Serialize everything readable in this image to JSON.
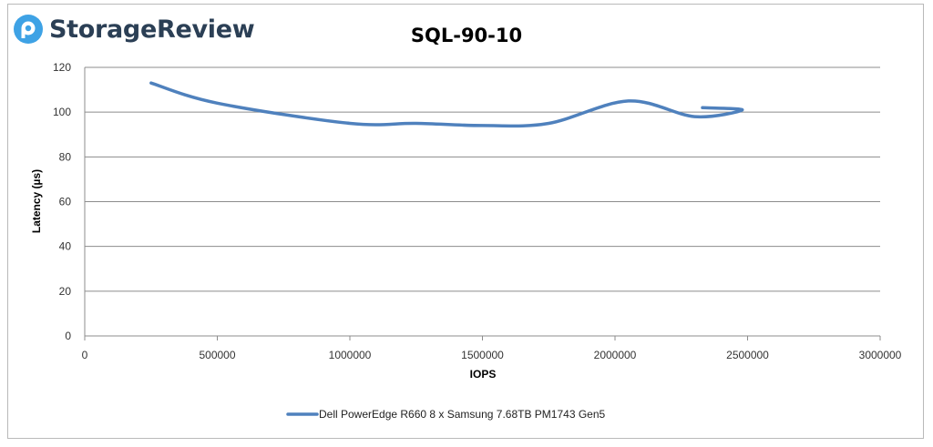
{
  "brand": {
    "name": "StorageReview",
    "logo_color": "#3ea2e5",
    "text_color": "#2b3f55"
  },
  "chart_data": {
    "type": "line",
    "title": "SQL-90-10",
    "xlabel": "IOPS",
    "ylabel": "Latency (µs)",
    "xlim": [
      0,
      3000000
    ],
    "ylim": [
      0,
      120
    ],
    "x_ticks": [
      0,
      500000,
      1000000,
      1500000,
      2000000,
      2500000,
      3000000
    ],
    "y_ticks": [
      0,
      20,
      40,
      60,
      80,
      100,
      120
    ],
    "grid": "horizontal",
    "legend_position": "bottom",
    "series": [
      {
        "name": "Dell PowerEdge R660 8 x Samsung 7.68TB PM1743 Gen5",
        "color": "#4f81bd",
        "points": [
          {
            "x": 250000,
            "y": 113
          },
          {
            "x": 500000,
            "y": 104
          },
          {
            "x": 1000000,
            "y": 95
          },
          {
            "x": 1250000,
            "y": 95
          },
          {
            "x": 1500000,
            "y": 94
          },
          {
            "x": 1750000,
            "y": 95
          },
          {
            "x": 2050000,
            "y": 105
          },
          {
            "x": 2300000,
            "y": 98
          },
          {
            "x": 2480000,
            "y": 101
          },
          {
            "x": 2330000,
            "y": 102
          }
        ]
      }
    ]
  }
}
